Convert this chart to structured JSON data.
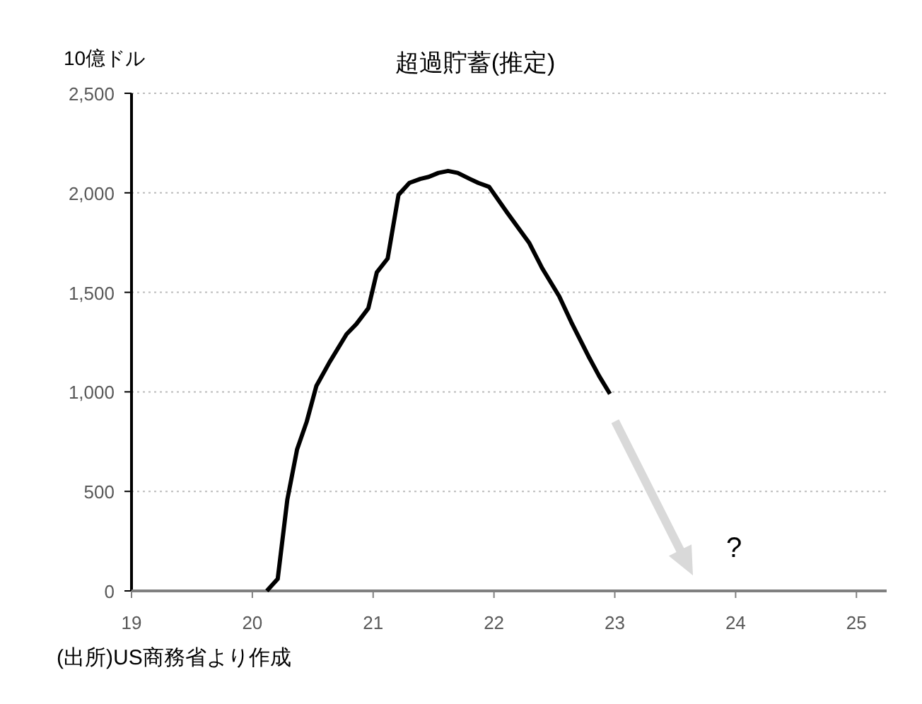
{
  "chart_data": {
    "type": "line",
    "title": "超過貯蓄(推定)",
    "ylabel": "10億ドル",
    "x": [
      20.12,
      20.21,
      20.29,
      20.37,
      20.45,
      20.53,
      20.64,
      20.78,
      20.86,
      20.96,
      21.03,
      21.12,
      21.21,
      21.3,
      21.39,
      21.46,
      21.54,
      21.62,
      21.7,
      21.8,
      21.87,
      21.96,
      22.11,
      22.29,
      22.4,
      22.54,
      22.64,
      22.79,
      22.87,
      22.96
    ],
    "series": [
      {
        "color": "#000000",
        "values": [
          0,
          60,
          460,
          710,
          850,
          1030,
          1150,
          1290,
          1340,
          1420,
          1600,
          1670,
          1990,
          2050,
          2070,
          2080,
          2100,
          2110,
          2100,
          2070,
          2050,
          2030,
          1900,
          1750,
          1620,
          1480,
          1350,
          1170,
          1080,
          990
        ]
      }
    ],
    "xlim": [
      19,
      25.25
    ],
    "xticks": [
      19,
      20,
      21,
      22,
      23,
      24,
      25
    ],
    "ylim": [
      0,
      2500
    ],
    "yticks": [
      {
        "value": 0,
        "label": "0"
      },
      {
        "value": 500,
        "label": "500"
      },
      {
        "value": 1000,
        "label": "1,000"
      },
      {
        "value": 1500,
        "label": "1,500"
      },
      {
        "value": 2000,
        "label": "2,000"
      },
      {
        "value": 2500,
        "label": "2,500"
      }
    ],
    "grid": "y",
    "marker": "none",
    "line_style": "solid",
    "annotations": [
      "?",
      "(出所)US商務省より作成"
    ]
  }
}
